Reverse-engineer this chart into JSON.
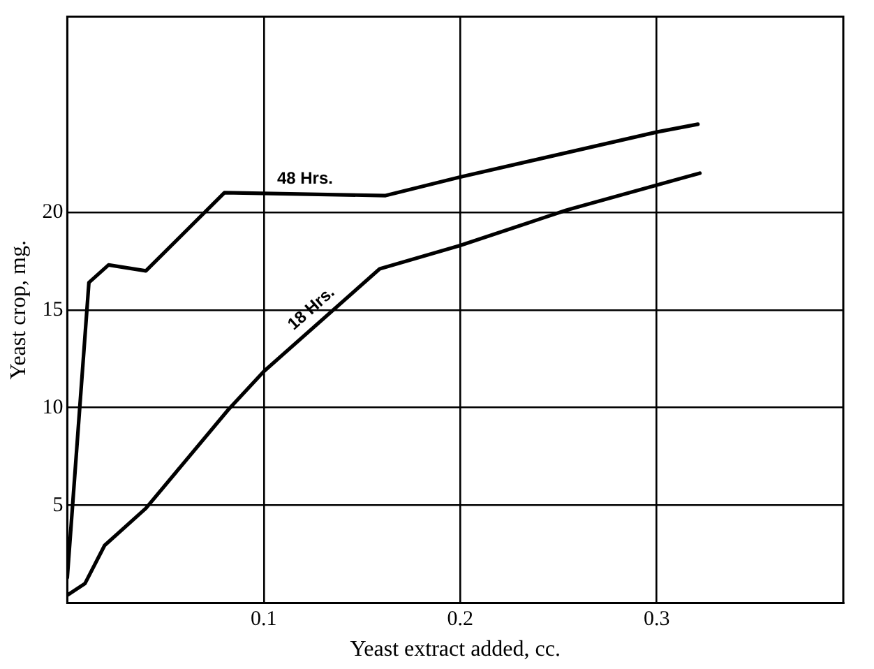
{
  "chart_data": {
    "type": "line",
    "xlabel": "Yeast extract added, cc.",
    "ylabel": "Yeast crop, mg.",
    "xlim": [
      0,
      0.395
    ],
    "xticks": [
      0.1,
      0.2,
      0.3
    ],
    "ylim": [
      0,
      30
    ],
    "yticks": [
      5,
      10,
      15,
      20
    ],
    "grid": true,
    "legend": false,
    "marker": "none",
    "line_style": "solid",
    "series": [
      {
        "name": "48 Hrs.",
        "color": "#000000",
        "x": [
          0,
          0.011,
          0.021,
          0.04,
          0.08,
          0.162,
          0.2,
          0.3,
          0.321
        ],
        "values": [
          1.3,
          16.4,
          17.3,
          17.0,
          21.0,
          20.85,
          21.8,
          24.1,
          24.5
        ]
      },
      {
        "name": "18 Hrs.",
        "color": "#000000",
        "x": [
          0,
          0.009,
          0.019,
          0.04,
          0.082,
          0.1,
          0.159,
          0.2,
          0.254,
          0.322
        ],
        "values": [
          0.4,
          1.0,
          2.95,
          4.85,
          9.9,
          11.85,
          17.1,
          18.3,
          20.1,
          22.0
        ]
      }
    ]
  }
}
